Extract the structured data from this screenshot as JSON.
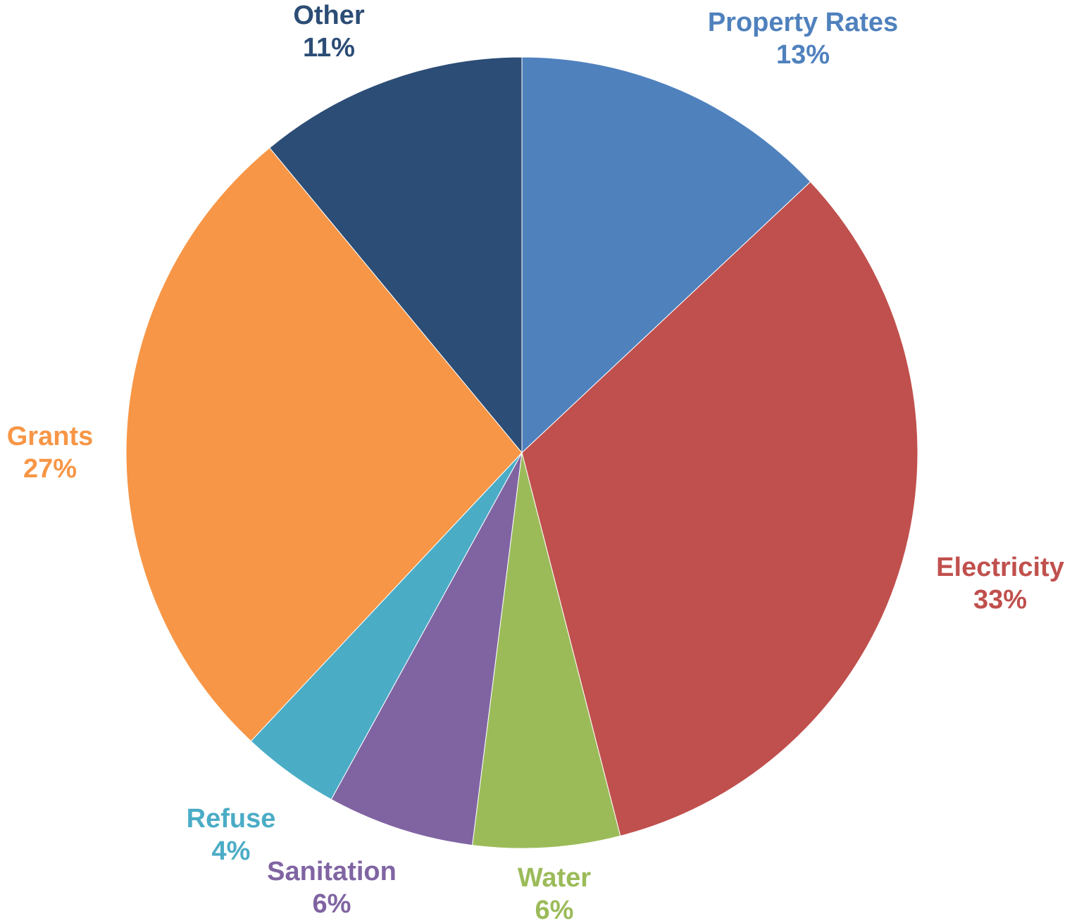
{
  "chart_data": {
    "type": "pie",
    "title": "",
    "start_angle_deg": 0,
    "direction": "clockwise",
    "slices": [
      {
        "label": "Property Rates",
        "value": 13,
        "percent_label": "13%",
        "color": "#4F81BD"
      },
      {
        "label": "Electricity",
        "value": 33,
        "percent_label": "33%",
        "color": "#C0504D"
      },
      {
        "label": "Water",
        "value": 6,
        "percent_label": "6%",
        "color": "#9BBB59"
      },
      {
        "label": "Sanitation",
        "value": 6,
        "percent_label": "6%",
        "color": "#8064A2"
      },
      {
        "label": "Refuse",
        "value": 4,
        "percent_label": "4%",
        "color": "#4BACC6"
      },
      {
        "label": "Grants",
        "value": 27,
        "percent_label": "27%",
        "color": "#F79646"
      },
      {
        "label": "Other",
        "value": 11,
        "percent_label": "11%",
        "color": "#2C4D75"
      }
    ],
    "legend": "none",
    "labels": "outside"
  }
}
